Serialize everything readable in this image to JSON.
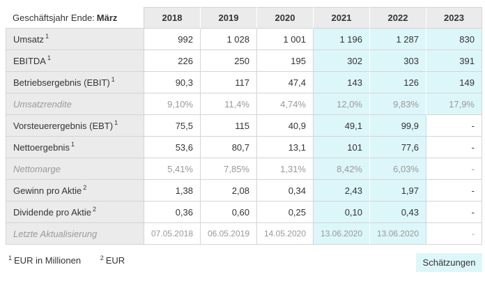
{
  "colors": {
    "border": "#d4d4d4",
    "header_bg": "#ebebeb",
    "estimate_bg": "#ddf6fa",
    "text": "#333333",
    "muted_text": "#999999",
    "page_bg": "#ffffff"
  },
  "table": {
    "header": {
      "corner_prefix": "Geschäftsjahr Ende:",
      "corner_bold": "März",
      "years": [
        "2018",
        "2019",
        "2020",
        "2021",
        "2022",
        "2023"
      ]
    },
    "rows": [
      {
        "key": "umsatz",
        "label": "Umsatz",
        "sup": "1",
        "muted": false,
        "date": false,
        "values": [
          "992",
          "1 028",
          "1 001",
          "1 196",
          "1 287",
          "830"
        ],
        "est_cols": [
          3,
          4,
          5
        ]
      },
      {
        "key": "ebitda",
        "label": "EBITDA",
        "sup": "1",
        "muted": false,
        "date": false,
        "values": [
          "226",
          "250",
          "195",
          "302",
          "303",
          "391"
        ],
        "est_cols": [
          3,
          4,
          5
        ]
      },
      {
        "key": "ebit",
        "label": "Betriebsergebnis (EBIT)",
        "sup": "1",
        "muted": false,
        "date": false,
        "values": [
          "90,3",
          "117",
          "47,4",
          "143",
          "126",
          "149"
        ],
        "est_cols": [
          3,
          4,
          5
        ]
      },
      {
        "key": "umsatzrendite",
        "label": "Umsatzrendite",
        "sup": null,
        "muted": true,
        "date": false,
        "values": [
          "9,10%",
          "11,4%",
          "4,74%",
          "12,0%",
          "9,83%",
          "17,9%"
        ],
        "est_cols": [
          3,
          4,
          5
        ]
      },
      {
        "key": "ebt",
        "label": "Vorsteuerergebnis (EBT)",
        "sup": "1",
        "muted": false,
        "date": false,
        "values": [
          "75,5",
          "115",
          "40,9",
          "49,1",
          "99,9",
          "-"
        ],
        "est_cols": [
          3,
          4
        ]
      },
      {
        "key": "nettoergebnis",
        "label": "Nettoergebnis",
        "sup": "1",
        "muted": false,
        "date": false,
        "values": [
          "53,6",
          "80,7",
          "13,1",
          "101",
          "77,6",
          "-"
        ],
        "est_cols": [
          3,
          4
        ]
      },
      {
        "key": "nettomarge",
        "label": "Nettomarge",
        "sup": null,
        "muted": true,
        "date": false,
        "values": [
          "5,41%",
          "7,85%",
          "1,31%",
          "8,42%",
          "6,03%",
          "-"
        ],
        "est_cols": [
          3,
          4
        ]
      },
      {
        "key": "gewinn-pro-aktie",
        "label": "Gewinn pro Aktie",
        "sup": "2",
        "muted": false,
        "date": false,
        "values": [
          "1,38",
          "2,08",
          "0,34",
          "2,43",
          "1,97",
          "-"
        ],
        "est_cols": [
          3,
          4
        ]
      },
      {
        "key": "dividende-pro-aktie",
        "label": "Dividende pro Aktie",
        "sup": "2",
        "muted": false,
        "date": false,
        "values": [
          "0,36",
          "0,60",
          "0,25",
          "0,10",
          "0,43",
          "-"
        ],
        "est_cols": [
          3,
          4
        ]
      },
      {
        "key": "letzte-aktualisierung",
        "label": "Letzte Aktualisierung",
        "sup": null,
        "muted": true,
        "date": true,
        "values": [
          "07.05.2018",
          "06.05.2019",
          "14.05.2020",
          "13.06.2020",
          "13.06.2020",
          "-"
        ],
        "est_cols": [
          3,
          4
        ]
      }
    ]
  },
  "footnotes": [
    {
      "sup": "1",
      "label": "EUR in Millionen"
    },
    {
      "sup": "2",
      "label": "EUR"
    }
  ],
  "legend": {
    "estimates": "Schätzungen"
  }
}
